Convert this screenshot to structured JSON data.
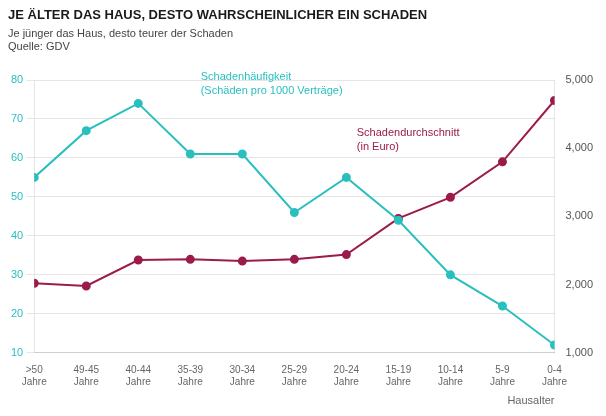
{
  "chart_data": {
    "type": "line",
    "title": "JE ÄLTER DAS HAUS, DESTO WAHRSCHEINLICHER EIN SCHADEN",
    "subtitle": "Je jünger das Haus, desto teurer der Schaden",
    "source": "Quelle: GDV",
    "x_label": "Hausalter",
    "categories": [
      ">50\nJahre",
      "49-45\nJahre",
      "40-44\nJahre",
      "35-39\nJahre",
      "30-34\nJahre",
      "25-29\nJahre",
      "20-24\nJahre",
      "15-19\nJahre",
      "10-14\nJahre",
      "5-9\nJahre",
      "0-4\nJahre"
    ],
    "series": [
      {
        "name": "Schadenhäufigkeit\n(Schäden pro 1000 Verträge)",
        "color": "#2ABFBF",
        "marker": "circle",
        "line_style": "solid",
        "values": [
          55,
          67,
          74,
          61,
          61,
          46,
          55,
          44,
          30,
          22,
          12
        ]
      },
      {
        "name": "Schadendurchschnitt\n(in Euro)",
        "color": "#9B1B4B",
        "marker": "circle",
        "line_style": "solid",
        "axis": "y2",
        "values": [
          2020,
          1980,
          2360,
          2370,
          2345,
          2370,
          2440,
          2970,
          3280,
          3800,
          4700
        ]
      }
    ],
    "ylim": [
      10,
      80
    ],
    "yticks": [
      10,
      20,
      30,
      40,
      50,
      60,
      70,
      80
    ],
    "y2lim": [
      1000,
      5000
    ],
    "y2ticks": [
      1000,
      2000,
      3000,
      4000,
      5000
    ],
    "grid": true
  }
}
